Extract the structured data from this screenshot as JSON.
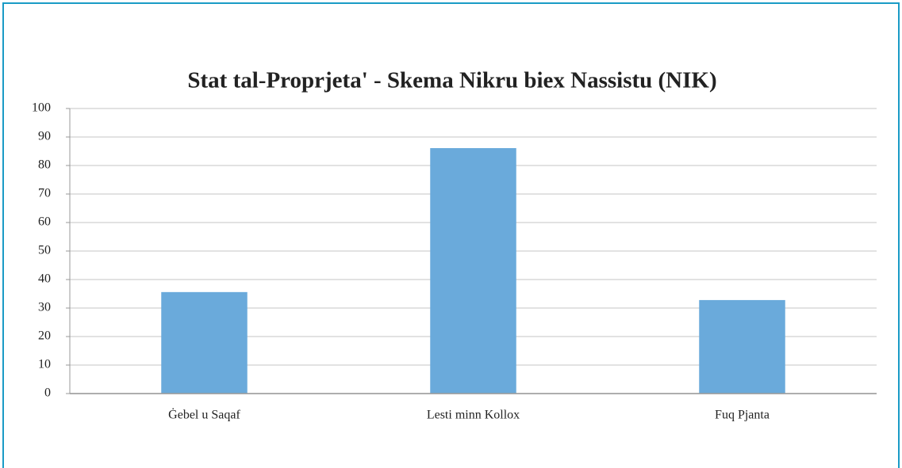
{
  "chart_data": {
    "type": "bar",
    "title": "Stat tal-Proprjeta' - Skema Nikru biex Nassistu (NIK)",
    "categories": [
      "Ġebel u Saqaf",
      "Lesti minn Kollox",
      "Fuq Pjanta"
    ],
    "values": [
      35.6,
      86.1,
      32.8
    ],
    "color": "#6aaadb",
    "ylim": [
      0,
      100
    ],
    "yticks": [
      0,
      10,
      20,
      30,
      40,
      50,
      60,
      70,
      80,
      90,
      100
    ],
    "grid": true
  }
}
